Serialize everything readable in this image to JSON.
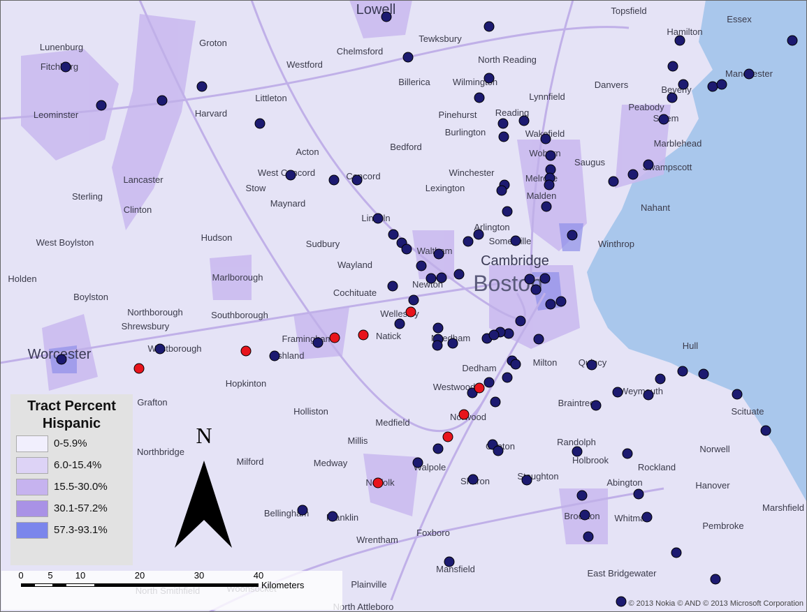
{
  "legend": {
    "title": "Tract Percent Hispanic",
    "items": [
      {
        "label": "0-5.9%",
        "color": "#f1effd"
      },
      {
        "label": "6.0-15.4%",
        "color": "#ddd3f6"
      },
      {
        "label": "15.5-30.0%",
        "color": "#c6b3ef"
      },
      {
        "label": "30.1-57.2%",
        "color": "#a992e6"
      },
      {
        "label": "57.3-93.1%",
        "color": "#7b86ec"
      }
    ]
  },
  "north": "N",
  "scale": {
    "labels": [
      "0",
      "5",
      "10",
      "20",
      "30",
      "40"
    ],
    "unit": "Kilometers"
  },
  "copyright": "© 2013 Nokia © AND © 2013 Microsoft Corporation",
  "places": [
    "Lowell",
    "Tewksbury",
    "Topsfield",
    "Essex",
    "Hamilton",
    "Lunenburg",
    "Groton",
    "Chelmsford",
    "North Reading",
    "Fitchburg",
    "Westford",
    "Danvers",
    "Billerica",
    "Wilmington",
    "Manchester",
    "Leominster",
    "Littleton",
    "Lynnfield",
    "Beverly",
    "Harvard",
    "Pinehurst",
    "Peabody",
    "Reading",
    "Salem",
    "Burlington",
    "Wakefield",
    "Bedford",
    "Marblehead",
    "Acton",
    "Woburn",
    "Lancaster",
    "Saugus",
    "Swampscott",
    "Winchester",
    "West Concord",
    "Concord",
    "Stow",
    "Lexington",
    "Melrose",
    "Sterling",
    "Maynard",
    "Malden",
    "Nahant",
    "Clinton",
    "Lincoln",
    "Arlington",
    "Hudson",
    "West Boylston",
    "Sudbury",
    "Waltham",
    "Somerville",
    "Winthrop",
    "Cambridge",
    "Wayland",
    "Holden",
    "Marlborough",
    "Boston",
    "Newton",
    "Boylston",
    "Northborough",
    "Southborough",
    "Cochituate",
    "Shrewsbury",
    "Framingham",
    "Natick",
    "Wellesley",
    "Needham",
    "Quincy",
    "Hull",
    "Worcester",
    "Westborough",
    "Ashland",
    "Milton",
    "Dedham",
    "Hopkinton",
    "Westwood",
    "Weymouth",
    "Grafton",
    "Holliston",
    "Braintree",
    "Scituate",
    "Medfield",
    "Norwood",
    "Millis",
    "Northbridge",
    "Canton",
    "Randolph",
    "Holbrook",
    "Rockland",
    "Norwell",
    "Milford",
    "Medway",
    "Walpole",
    "Norfolk",
    "Sharon",
    "Stoughton",
    "Abington",
    "Hanover",
    "Marshfield",
    "Bellingham",
    "Franklin",
    "Brockton",
    "Whitman",
    "Pembroke",
    "Wrentham",
    "Foxboro",
    "Mansfield",
    "East Bridgewater",
    "Plainville",
    "North Attleboro",
    "North Smithfield",
    "Woonsocket"
  ]
}
